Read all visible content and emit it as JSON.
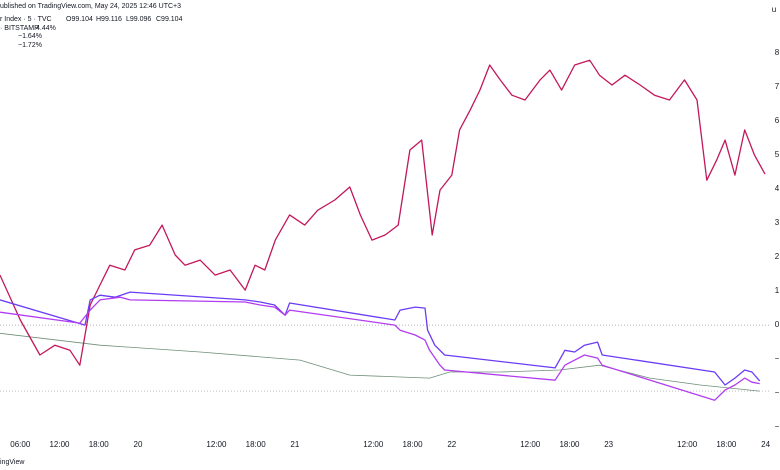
{
  "chart_data": {
    "type": "line",
    "header": "ublished on TradingView.com, May 24, 2025 12:46 UTC+3",
    "y_axis_unit": "u",
    "footer": "ingView",
    "xlim": [
      2.9,
      122.2
    ],
    "ylim": [
      -3.32,
      9.56
    ],
    "xticks": [
      {
        "value": 6,
        "label": "06:00"
      },
      {
        "value": 12,
        "label": "12:00"
      },
      {
        "value": 18,
        "label": "18:00"
      },
      {
        "value": 24,
        "label": "20"
      },
      {
        "value": 36,
        "label": "12:00"
      },
      {
        "value": 42,
        "label": "18:00"
      },
      {
        "value": 48,
        "label": "21"
      },
      {
        "value": 60,
        "label": "12:00"
      },
      {
        "value": 66,
        "label": "18:00"
      },
      {
        "value": 72,
        "label": "22"
      },
      {
        "value": 84,
        "label": "12:00"
      },
      {
        "value": 90,
        "label": "18:00"
      },
      {
        "value": 96,
        "label": "23"
      },
      {
        "value": 108,
        "label": "12:00"
      },
      {
        "value": 114,
        "label": "18:00"
      },
      {
        "value": 120,
        "label": "24"
      }
    ],
    "yticks": [
      8,
      7,
      6,
      5,
      4,
      3,
      2,
      1,
      0,
      {
        "value": -1,
        "label": "−"
      },
      {
        "value": -2,
        "label": "−"
      },
      {
        "value": -3,
        "label": "−"
      }
    ],
    "reference_lines": [
      0,
      -1.94
    ],
    "series": [
      {
        "name": "r Index · 5 · TVC",
        "color": "#6f8f78",
        "ohlc": [
          "O99.104",
          "H99.116",
          "L99.096",
          "C99.104"
        ],
        "ohlc_color": "#089981",
        "x": [
          2.9,
          18.2,
          33.5,
          48.8,
          56.4,
          68.6,
          71.7,
          79.4,
          88.5,
          94.6,
          102.3,
          110.0,
          119.1
        ],
        "values": [
          -0.24,
          -0.59,
          -0.79,
          -1.03,
          -1.47,
          -1.56,
          -1.38,
          -1.38,
          -1.32,
          -1.18,
          -1.56,
          -1.76,
          -1.94
        ]
      },
      {
        "name": "· BITSTAMP",
        "color": "#c2185b",
        "legend_value": "4.44%",
        "x": [
          2.9,
          6.0,
          9.0,
          11.3,
          13.6,
          15.1,
          16.7,
          18.2,
          19.7,
          22.0,
          23.5,
          25.8,
          27.7,
          29.7,
          31.2,
          33.5,
          35.8,
          38.1,
          40.4,
          41.9,
          43.4,
          45.0,
          47.2,
          49.5,
          51.5,
          54.1,
          56.4,
          58.0,
          59.8,
          61.8,
          63.8,
          65.6,
          67.4,
          69.0,
          70.2,
          72.0,
          73.2,
          74.8,
          76.3,
          77.8,
          79.4,
          81.2,
          83.2,
          85.5,
          87.0,
          88.8,
          90.8,
          93.1,
          94.6,
          96.5,
          98.5,
          100.8,
          103.0,
          105.3,
          107.6,
          109.5,
          111.0,
          112.5,
          113.8,
          115.3,
          116.8,
          118.3,
          119.9
        ],
        "values": [
          1.47,
          0.15,
          -0.88,
          -0.59,
          -0.74,
          -1.18,
          0.59,
          1.18,
          1.76,
          1.62,
          2.21,
          2.35,
          2.94,
          2.06,
          1.76,
          1.91,
          1.47,
          1.62,
          1.03,
          1.76,
          1.62,
          2.5,
          3.24,
          2.94,
          3.38,
          3.68,
          4.06,
          3.24,
          2.5,
          2.65,
          2.94,
          5.15,
          5.44,
          2.65,
          3.97,
          4.41,
          5.74,
          6.32,
          6.91,
          7.65,
          7.21,
          6.76,
          6.62,
          7.21,
          7.5,
          6.91,
          7.65,
          7.79,
          7.35,
          7.06,
          7.35,
          7.06,
          6.76,
          6.62,
          7.21,
          6.62,
          4.26,
          4.85,
          5.44,
          4.41,
          5.74,
          5.0,
          4.44
        ]
      },
      {
        "color": "#6b3cf5",
        "legend_value": "−1.64%",
        "x": [
          2.9,
          15.9,
          16.7,
          18.2,
          20.5,
          22.8,
          40.4,
          42.7,
          44.9,
          46.5,
          47.2,
          63.3,
          64.1,
          66.4,
          67.9,
          68.3,
          69.4,
          70.9,
          87.8,
          89.3,
          90.8,
          92.3,
          94.3,
          95.0,
          112.2,
          113.8,
          115.3,
          116.8,
          117.9,
          119.1
        ],
        "values": [
          0.74,
          0,
          0.74,
          0.88,
          0.82,
          0.97,
          0.74,
          0.68,
          0.59,
          0.29,
          0.65,
          0.15,
          0.44,
          0.53,
          0.5,
          -0.15,
          -0.59,
          -0.88,
          -1.26,
          -0.74,
          -0.79,
          -0.59,
          -0.5,
          -0.88,
          -1.38,
          -1.76,
          -1.56,
          -1.32,
          -1.38,
          -1.64
        ]
      },
      {
        "color": "#b23cf0",
        "legend_value": "−1.72%",
        "x": [
          2.9,
          15.1,
          16.7,
          18.2,
          21.3,
          22.8,
          40.4,
          42.7,
          44.9,
          46.5,
          47.2,
          63.3,
          64.1,
          66.4,
          67.9,
          68.6,
          70.2,
          70.9,
          87.8,
          89.3,
          90.8,
          92.3,
          94.3,
          95.0,
          112.2,
          113.8,
          115.3,
          116.8,
          117.9,
          119.1
        ],
        "values": [
          0.38,
          0.06,
          0.44,
          0.74,
          0.82,
          0.74,
          0.68,
          0.59,
          0.53,
          0.29,
          0.44,
          0,
          -0.15,
          -0.29,
          -0.44,
          -0.74,
          -1.18,
          -1.32,
          -1.62,
          -1.18,
          -1.03,
          -0.88,
          -0.97,
          -1.18,
          -2.21,
          -1.91,
          -1.76,
          -1.56,
          -1.68,
          -1.72
        ]
      }
    ]
  }
}
